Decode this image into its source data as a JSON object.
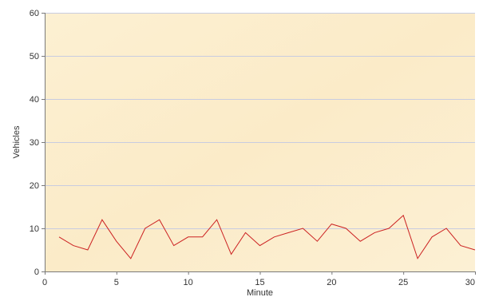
{
  "chart_data": {
    "type": "line",
    "title": "",
    "xlabel": "Minute",
    "ylabel": "Vehicles",
    "xlim": [
      0,
      30
    ],
    "ylim": [
      0,
      60
    ],
    "xticks": [
      0,
      5,
      10,
      15,
      20,
      25,
      30
    ],
    "yticks": [
      0,
      10,
      20,
      30,
      40,
      50,
      60
    ],
    "grid": "horizontal",
    "legend": "none",
    "series": [
      {
        "color": "#cc2222",
        "x": [
          1,
          2,
          3,
          4,
          5,
          6,
          7,
          8,
          9,
          10,
          11,
          12,
          13,
          14,
          15,
          16,
          17,
          18,
          19,
          20,
          21,
          22,
          23,
          24,
          25,
          26,
          27,
          28,
          29,
          30
        ],
        "y": [
          8,
          6,
          5,
          12,
          7,
          3,
          10,
          12,
          6,
          8,
          8,
          12,
          4,
          9,
          6,
          8,
          9,
          10,
          7,
          11,
          10,
          7,
          9,
          10,
          13,
          3,
          8,
          10,
          6,
          5
        ]
      }
    ]
  },
  "colors": {
    "plot_background": "#fbefcf",
    "gridline": "#c8cce0",
    "series": "#cc2222"
  }
}
